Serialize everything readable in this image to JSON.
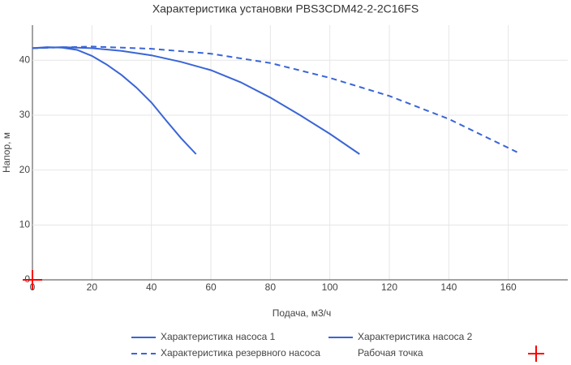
{
  "chart_data": {
    "type": "line",
    "title": "Характеристика установки PBS3CDM42-2-2C16FS",
    "x_label": "Подача, м3/ч",
    "y_label": "Напор, м",
    "xlim": [
      0,
      180
    ],
    "ylim": [
      0,
      46.4
    ],
    "xticks": [
      0,
      20,
      40,
      60,
      80,
      100,
      120,
      140,
      160
    ],
    "yticks": [
      0,
      10,
      20,
      30,
      40
    ],
    "grid": true,
    "series": [
      {
        "name": "Характеристика насоса 1",
        "color": "#3a65d6",
        "line_style": "solid",
        "x": [
          0,
          5,
          10,
          15,
          20,
          25,
          30,
          35,
          40,
          45,
          50,
          55
        ],
        "values": [
          42.2,
          42.4,
          42.3,
          41.9,
          40.8,
          39.2,
          37.3,
          35,
          32.3,
          29,
          25.8,
          22.9
        ]
      },
      {
        "name": "Характеристика насоса 2",
        "color": "#3a65d6",
        "line_style": "solid",
        "x": [
          0,
          10,
          20,
          30,
          40,
          50,
          60,
          70,
          80,
          90,
          100,
          110
        ],
        "values": [
          42.2,
          42.4,
          42.2,
          41.7,
          40.9,
          39.7,
          38.2,
          36,
          33.2,
          30,
          26.6,
          22.9
        ]
      },
      {
        "name": "Характеристика резервного насоса",
        "color": "#3a65d6",
        "line_style": "dash",
        "x": [
          0,
          20,
          40,
          60,
          80,
          100,
          120,
          140,
          164
        ],
        "values": [
          42.2,
          42.5,
          42.1,
          41.2,
          39.5,
          36.8,
          33.5,
          29.3,
          23
        ]
      },
      {
        "name": "Рабочая точка",
        "color": "#ff0000",
        "line_style": "marker",
        "x": [
          0
        ],
        "values": [
          0
        ]
      }
    ]
  }
}
